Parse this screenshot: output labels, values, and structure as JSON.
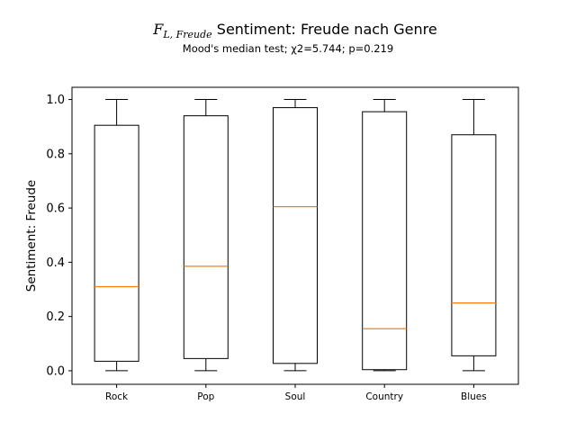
{
  "chart_data": {
    "type": "box",
    "title_symbol": "F",
    "title_symbol_subscript": "L, Freude",
    "title_rest": " Sentiment: Freude nach Genre",
    "subtitle": "Mood's median test; χ2=5.744; p=0.219",
    "xlabel": "",
    "ylabel": "Sentiment: Freude",
    "ylim": [
      -0.05,
      1.045
    ],
    "yticks": [
      0.0,
      0.2,
      0.4,
      0.6,
      0.8,
      1.0
    ],
    "ytick_labels": [
      "0.0",
      "0.2",
      "0.4",
      "0.6",
      "0.8",
      "1.0"
    ],
    "grid": false,
    "categories": [
      "Rock",
      "Pop",
      "Soul",
      "Country",
      "Blues"
    ],
    "boxes": [
      {
        "category": "Rock",
        "whisker_low": 0.0,
        "q1": 0.035,
        "median": 0.31,
        "q3": 0.905,
        "whisker_high": 1.0
      },
      {
        "category": "Pop",
        "whisker_low": 0.0,
        "q1": 0.045,
        "median": 0.385,
        "q3": 0.94,
        "whisker_high": 1.0
      },
      {
        "category": "Soul",
        "whisker_low": 0.0,
        "q1": 0.027,
        "median": 0.605,
        "q3": 0.97,
        "whisker_high": 1.0
      },
      {
        "category": "Country",
        "whisker_low": 0.0,
        "q1": 0.004,
        "median": 0.155,
        "q3": 0.955,
        "whisker_high": 1.0
      },
      {
        "category": "Blues",
        "whisker_low": 0.0,
        "q1": 0.055,
        "median": 0.25,
        "q3": 0.87,
        "whisker_high": 1.0
      }
    ],
    "colors": {
      "box": "#000000",
      "median": "#ff7f0e"
    }
  }
}
